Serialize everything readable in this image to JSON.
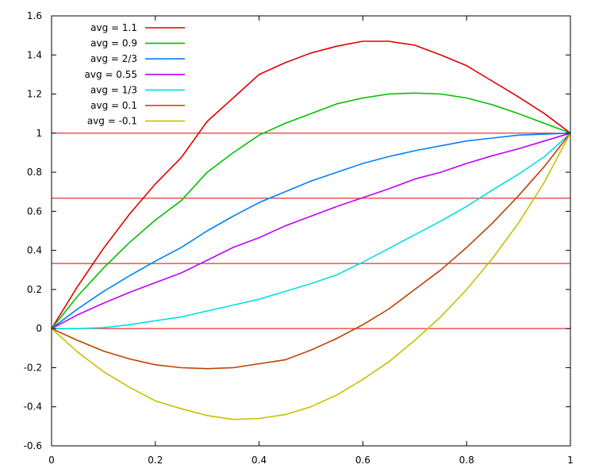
{
  "chart_data": {
    "type": "line",
    "title": "",
    "xlabel": "",
    "ylabel": "",
    "xlim": [
      0,
      1
    ],
    "ylim": [
      -0.6,
      1.6
    ],
    "grid": false,
    "legend_position": "top-left",
    "x_ticks": [
      0,
      0.2,
      0.4,
      0.6,
      0.8,
      1
    ],
    "x_tick_labels": [
      "0",
      "0.2",
      "0.4",
      "0.6",
      "0.8",
      "1"
    ],
    "y_ticks": [
      -0.6,
      -0.4,
      -0.2,
      0,
      0.2,
      0.4,
      0.6,
      0.8,
      1,
      1.2,
      1.4,
      1.6
    ],
    "y_tick_labels": [
      "-0.6",
      "-0.4",
      "-0.2",
      "0",
      "0.2",
      "0.4",
      "0.6",
      "0.8",
      "1",
      "1.2",
      "1.4",
      "1.6"
    ],
    "reference_lines": {
      "color": "#e00000",
      "y": [
        0,
        0.3333,
        0.6667,
        1
      ]
    },
    "x": [
      0,
      0.05,
      0.1,
      0.15,
      0.2,
      0.25,
      0.3,
      0.35,
      0.4,
      0.45,
      0.5,
      0.55,
      0.6,
      0.65,
      0.7,
      0.75,
      0.8,
      0.85,
      0.9,
      0.95,
      1
    ],
    "series": [
      {
        "name": "avg = 1.1",
        "color": "#e00000",
        "values": [
          0,
          0.215,
          0.41,
          0.585,
          0.74,
          0.875,
          1.06,
          1.18,
          1.3,
          1.36,
          1.41,
          1.445,
          1.47,
          1.47,
          1.45,
          1.4,
          1.345,
          1.265,
          1.185,
          1.1,
          1
        ]
      },
      {
        "name": "avg = 0.9",
        "color": "#00c000",
        "values": [
          0,
          0.165,
          0.31,
          0.44,
          0.555,
          0.655,
          0.8,
          0.9,
          0.99,
          1.05,
          1.1,
          1.15,
          1.18,
          1.2,
          1.205,
          1.2,
          1.18,
          1.145,
          1.1,
          1.05,
          1
        ]
      },
      {
        "name": "avg = 2/3",
        "color": "#0080ff",
        "values": [
          0,
          0.1,
          0.19,
          0.27,
          0.345,
          0.415,
          0.5,
          0.575,
          0.645,
          0.7,
          0.755,
          0.8,
          0.845,
          0.88,
          0.91,
          0.935,
          0.96,
          0.975,
          0.99,
          0.995,
          1
        ]
      },
      {
        "name": "avg = 0.55",
        "color": "#c000ff",
        "values": [
          0,
          0.07,
          0.13,
          0.185,
          0.235,
          0.285,
          0.35,
          0.415,
          0.465,
          0.525,
          0.575,
          0.625,
          0.67,
          0.715,
          0.765,
          0.8,
          0.845,
          0.885,
          0.92,
          0.96,
          1
        ]
      },
      {
        "name": "avg = 1/3",
        "color": "#00e0e0",
        "values": [
          0,
          0,
          0.005,
          0.02,
          0.04,
          0.06,
          0.09,
          0.12,
          0.15,
          0.19,
          0.23,
          0.275,
          0.34,
          0.41,
          0.48,
          0.55,
          0.625,
          0.71,
          0.79,
          0.88,
          1
        ]
      },
      {
        "name": "avg = 0.1",
        "color": "#c04000",
        "values": [
          0,
          -0.06,
          -0.115,
          -0.155,
          -0.185,
          -0.2,
          -0.205,
          -0.2,
          -0.18,
          -0.16,
          -0.11,
          -0.05,
          0.02,
          0.1,
          0.2,
          0.3,
          0.415,
          0.54,
          0.68,
          0.83,
          1
        ]
      },
      {
        "name": "avg = -0.1",
        "color": "#c8c000",
        "values": [
          0,
          -0.12,
          -0.22,
          -0.3,
          -0.37,
          -0.41,
          -0.445,
          -0.465,
          -0.46,
          -0.44,
          -0.4,
          -0.34,
          -0.26,
          -0.17,
          -0.06,
          0.06,
          0.2,
          0.36,
          0.54,
          0.75,
          1
        ]
      }
    ]
  }
}
